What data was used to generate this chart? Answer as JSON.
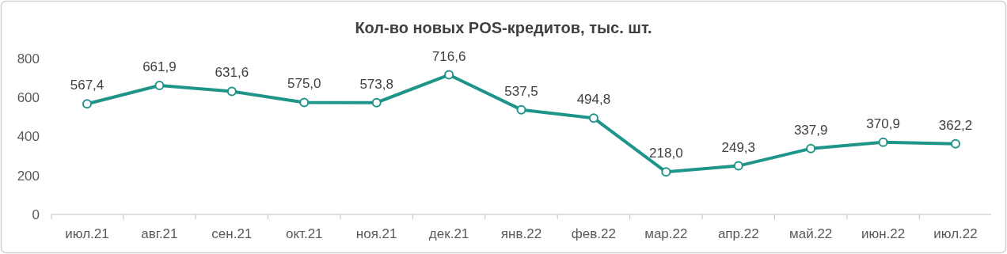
{
  "chart_data": {
    "type": "line",
    "title": "Кол-во новых POS-кредитов, тыс. шт.",
    "categories": [
      "июл.21",
      "авг.21",
      "сен.21",
      "окт.21",
      "ноя.21",
      "дек.21",
      "янв.22",
      "фев.22",
      "мар.22",
      "апр.22",
      "май.22",
      "июн.22",
      "июл.22"
    ],
    "series": [
      {
        "color": "#1f9488",
        "values": [
          567.4,
          661.9,
          631.6,
          575.0,
          573.8,
          716.6,
          537.5,
          494.8,
          218.0,
          249.3,
          337.9,
          370.9,
          362.2
        ],
        "value_labels": [
          "567,4",
          "661,9",
          "631,6",
          "575,0",
          "573,8",
          "716,6",
          "537,5",
          "494,8",
          "218,0",
          "249,3",
          "337,9",
          "370,9",
          "362,2"
        ]
      }
    ],
    "ylim": [
      0,
      800
    ],
    "yticks": [
      0,
      200,
      400,
      600,
      800
    ],
    "grid": false,
    "marker": "circle",
    "line_style": "solid"
  }
}
